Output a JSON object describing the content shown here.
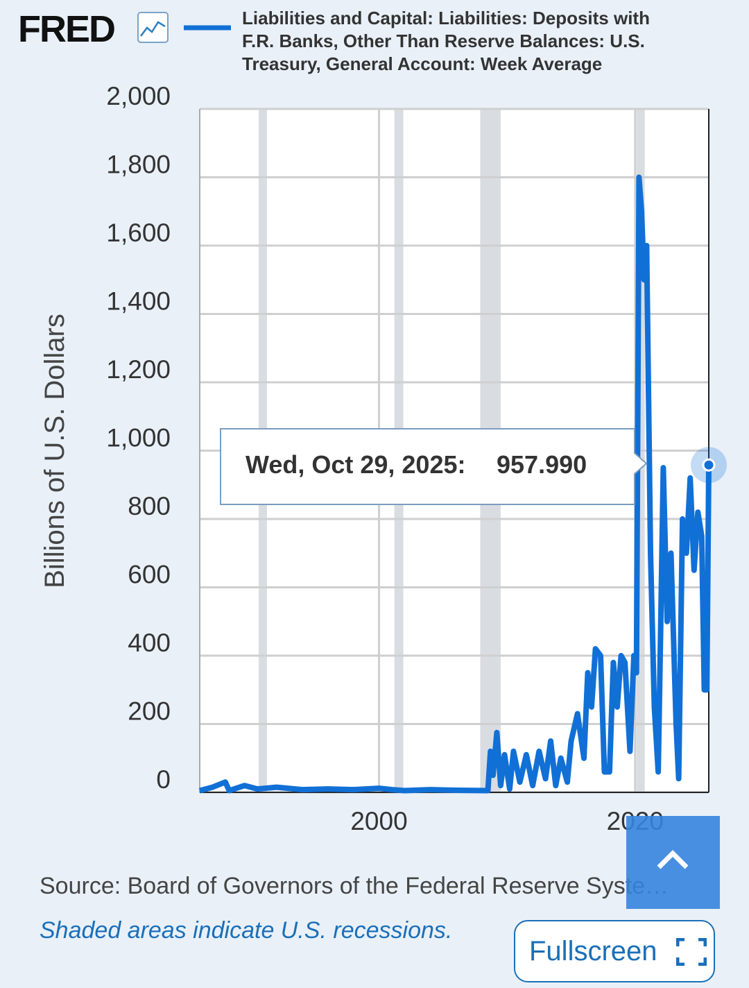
{
  "page": {
    "logo": "FRED",
    "source": "Source: Board of Governors of the Federal Reserve Syste…",
    "note": "Shaded areas indicate U.S. recessions.",
    "fullscreen": "Fullscreen"
  },
  "chart_data": {
    "type": "line",
    "title": "Liabilities and Capital: Liabilities: Deposits with F.R. Banks, Other Than Reserve Balances: U.S. Treasury, General Account: Week Average",
    "y_label": "Billions of U.S. Dollars",
    "xlim": [
      1986,
      2025.75
    ],
    "xticks": [
      2000,
      2020
    ],
    "ylim": [
      0,
      2000
    ],
    "yticks": [
      0,
      200,
      400,
      600,
      800,
      {
        "value": 1000,
        "label": "1,000"
      },
      {
        "value": 1200,
        "label": "1,200"
      },
      {
        "value": 1400,
        "label": "1,400"
      },
      {
        "value": 1600,
        "label": "1,600"
      },
      {
        "value": 1800,
        "label": "1,800"
      },
      {
        "value": 2000,
        "label": "2,000"
      }
    ],
    "grid": true,
    "recessions": [
      [
        1990.6,
        1991.2
      ],
      [
        2001.2,
        2001.9
      ],
      [
        2007.9,
        2009.5
      ],
      [
        2020.1,
        2020.3
      ]
    ],
    "tooltip": {
      "date": "Wed, Oct 29, 2025:",
      "value_label": "957.990"
    },
    "series": [
      {
        "name": "Liabilities and Capital: Liabilities: Deposits with F.R. Banks, Other Than Reserve Balances: U.S. Treasury, General Account: Week Average",
        "color": "#1170d6",
        "x": [
          1986.0,
          1987.0,
          1988.0,
          1988.3,
          1989.5,
          1990.5,
          1992,
          1994,
          1996,
          1998,
          2000,
          2001,
          2002,
          2004,
          2006,
          2008.5,
          2008.7,
          2008.9,
          2009.2,
          2009.5,
          2009.8,
          2010.2,
          2010.5,
          2011.0,
          2011.5,
          2012.0,
          2012.5,
          2013.0,
          2013.4,
          2013.8,
          2014.2,
          2014.7,
          2015.0,
          2015.5,
          2016.0,
          2016.3,
          2016.6,
          2016.9,
          2017.3,
          2017.6,
          2018.0,
          2018.3,
          2018.6,
          2018.9,
          2019.2,
          2019.6,
          2019.9,
          2020.1,
          2020.3,
          2020.5,
          2020.7,
          2020.9,
          2021.2,
          2021.5,
          2021.8,
          2022.0,
          2022.2,
          2022.5,
          2022.8,
          2023.2,
          2023.4,
          2023.7,
          2024.0,
          2024.3,
          2024.6,
          2024.9,
          2025.2,
          2025.4,
          2025.6,
          2025.75
        ],
        "values": [
          5,
          15,
          30,
          5,
          20,
          10,
          15,
          8,
          10,
          8,
          12,
          8,
          5,
          8,
          6,
          5,
          120,
          50,
          175,
          20,
          110,
          10,
          120,
          30,
          110,
          20,
          120,
          40,
          150,
          20,
          100,
          30,
          150,
          230,
          100,
          350,
          250,
          420,
          400,
          60,
          60,
          380,
          250,
          400,
          380,
          120,
          400,
          350,
          1800,
          1700,
          1500,
          1600,
          700,
          250,
          60,
          500,
          950,
          500,
          700,
          200,
          40,
          800,
          700,
          920,
          650,
          820,
          750,
          300,
          300,
          957.99
        ]
      }
    ]
  }
}
